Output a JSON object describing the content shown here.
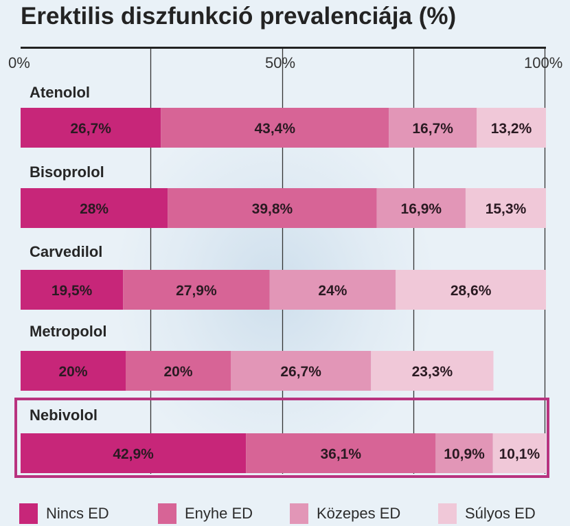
{
  "title": "Erektilis diszfunkció prevalenciája (%)",
  "chart_data": {
    "type": "bar",
    "orientation": "horizontal",
    "stacked": true,
    "title": "Erektilis diszfunkció prevalenciája (%)",
    "xlim": [
      0,
      100
    ],
    "x_ticks": [
      "0%",
      "50%",
      "100%"
    ],
    "grid": true,
    "legend_position": "bottom",
    "categories": [
      "Atenolol",
      "Bisoprolol",
      "Carvedilol",
      "Metropolol",
      "Nebivolol"
    ],
    "series": [
      {
        "name": "Nincs ED",
        "color": "#c72679",
        "values": [
          26.7,
          28,
          19.5,
          20,
          42.9
        ],
        "labels": [
          "26,7%",
          "28%",
          "19,5%",
          "20%",
          "42,9%"
        ]
      },
      {
        "name": "Enyhe ED",
        "color": "#d76496",
        "values": [
          43.4,
          39.8,
          27.9,
          20,
          36.1
        ],
        "labels": [
          "43,4%",
          "39,8%",
          "27,9%",
          "20%",
          "36,1%"
        ]
      },
      {
        "name": "Közepes ED",
        "color": "#e296b7",
        "values": [
          16.7,
          16.9,
          24,
          26.7,
          10.9
        ],
        "labels": [
          "16,7%",
          "16,9%",
          "24%",
          "26,7%",
          "10,9%"
        ]
      },
      {
        "name": "Súlyos ED",
        "color": "#f0c8d8",
        "values": [
          13.2,
          15.3,
          28.6,
          23.3,
          10.1
        ],
        "labels": [
          "13,2%",
          "15,3%",
          "28,6%",
          "23,3%",
          "10,1%"
        ]
      }
    ],
    "highlighted_category": "Nebivolol"
  },
  "colors": {
    "highlight_border": "#b8337f",
    "axis": "#222222",
    "grid": "#333333",
    "background": "#e9f1f7"
  }
}
